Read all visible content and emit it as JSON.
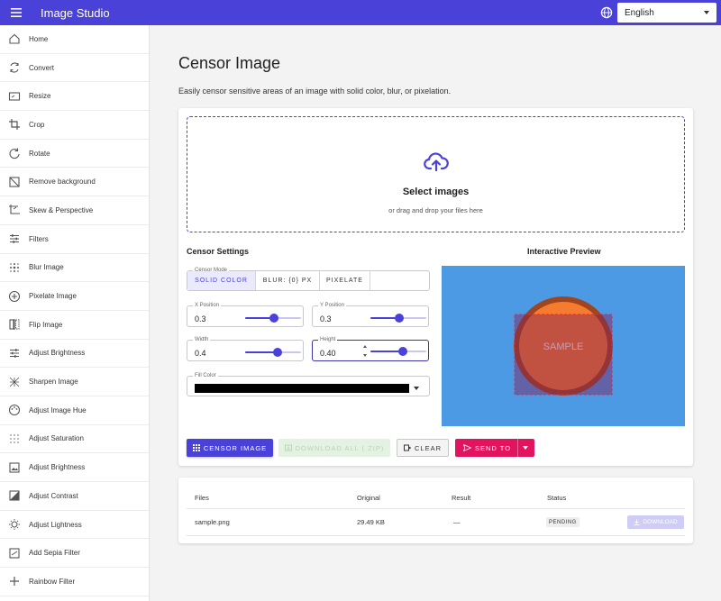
{
  "app": {
    "title": "Image Studio",
    "language": "English"
  },
  "sidebar": {
    "items": [
      {
        "label": "Home",
        "icon": "home-icon"
      },
      {
        "label": "Convert",
        "icon": "convert-icon"
      },
      {
        "label": "Resize",
        "icon": "resize-icon"
      },
      {
        "label": "Crop",
        "icon": "crop-icon"
      },
      {
        "label": "Rotate",
        "icon": "rotate-icon"
      },
      {
        "label": "Remove background",
        "icon": "remove-background-icon"
      },
      {
        "label": "Skew & Perspective",
        "icon": "skew-icon"
      },
      {
        "label": "Filters",
        "icon": "filters-icon"
      },
      {
        "label": "Blur Image",
        "icon": "blur-icon"
      },
      {
        "label": "Pixelate Image",
        "icon": "pixelate-icon"
      },
      {
        "label": "Flip Image",
        "icon": "flip-icon"
      },
      {
        "label": "Adjust Brightness",
        "icon": "brightness-icon"
      },
      {
        "label": "Sharpen Image",
        "icon": "sharpen-icon"
      },
      {
        "label": "Adjust Image Hue",
        "icon": "palette-icon"
      },
      {
        "label": "Adjust Saturation",
        "icon": "saturation-icon"
      },
      {
        "label": "Adjust Brightness",
        "icon": "image-icon"
      },
      {
        "label": "Adjust Contrast",
        "icon": "contrast-icon"
      },
      {
        "label": "Adjust Lightness",
        "icon": "lightness-icon"
      },
      {
        "label": "Add Sepia Filter",
        "icon": "sepia-icon"
      },
      {
        "label": "Rainbow Filter",
        "icon": "plus-icon"
      }
    ]
  },
  "page": {
    "title": "Censor Image",
    "description": "Easily censor sensitive areas of an image with solid color, blur, or pixelation."
  },
  "dropzone": {
    "title": "Select images",
    "subtitle": "or drag and drop your files here"
  },
  "settings": {
    "title": "Censor Settings",
    "mode_legend": "Censor Mode",
    "modes": [
      "SOLID COLOR",
      "BLUR: {0} PX",
      "PIXELATE"
    ],
    "selected_mode": "SOLID COLOR",
    "x_position": {
      "legend": "X Position",
      "value": "0.3",
      "fraction": 0.3
    },
    "y_position": {
      "legend": "Y Position",
      "value": "0.3",
      "fraction": 0.3
    },
    "width": {
      "legend": "Width",
      "value": "0.4",
      "fraction": 0.4
    },
    "height": {
      "legend": "Height",
      "value": "0.40",
      "fraction": 0.4
    },
    "fill_color": {
      "legend": "Fill Color",
      "value": "#000000"
    }
  },
  "preview": {
    "title": "Interactive Preview",
    "sample_text": "SAMPLE",
    "background_color": "#4b9ae3",
    "circle_color": "#f57c2e",
    "circle_border_color": "#a0461e",
    "selection_color": "#e0284a"
  },
  "actions": {
    "censor": "CENSOR IMAGE",
    "download_all": "DOWNLOAD ALL (.ZIP)",
    "clear": "CLEAR",
    "send_to": "SEND TO"
  },
  "files_table": {
    "headers": [
      "Files",
      "Original",
      "Result",
      "Status"
    ],
    "rows": [
      {
        "name": "sample.png",
        "original": "29.49 KB",
        "result": "—",
        "status": "PENDING",
        "action": "DOWNLOAD"
      }
    ]
  },
  "colors": {
    "primary": "#4a42d8",
    "send": "#e3145f",
    "download_disabled": "#e3f2e1"
  }
}
